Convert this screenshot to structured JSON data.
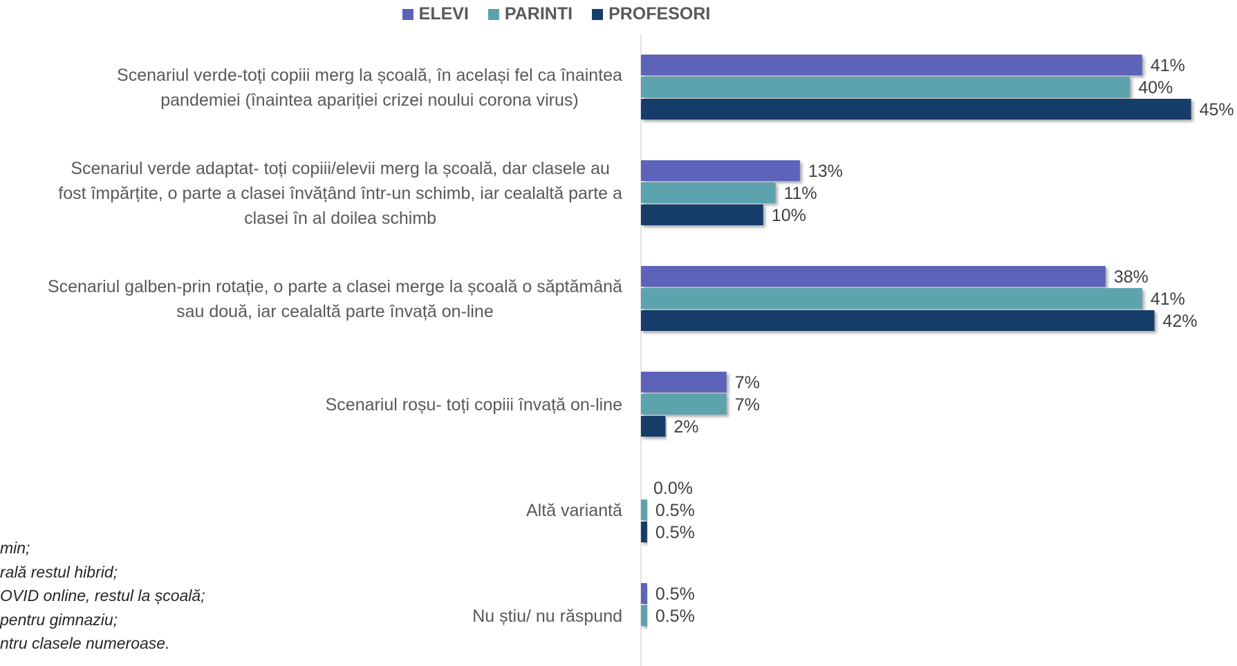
{
  "chart_data": {
    "type": "bar",
    "orientation": "horizontal",
    "legend_position": "top",
    "grid": false,
    "xlim": [
      0,
      50
    ],
    "categories": [
      [
        "Scenariul verde-toți copiii merg la școală, în același fel ca înaintea",
        "pandemiei (înaintea apariției crizei noului corona virus)"
      ],
      [
        "Scenariul verde adaptat- toți copiii/elevii merg la școală, dar clasele au",
        "fost împărțite, o parte a clasei învățând într-un schimb, iar cealaltă parte a",
        "clasei în al doilea schimb"
      ],
      [
        "Scenariul galben-prin rotație, o parte a clasei merge la școală o săptămână",
        "sau două, iar cealaltă parte învață on-line"
      ],
      [
        "Scenariul roșu- toți copiii învață on-line"
      ],
      [
        "Altă variantă"
      ],
      [
        "Nu știu/ nu răspund"
      ]
    ],
    "series": [
      {
        "name": "ELEVI",
        "color": "#5B63B9",
        "values": [
          41,
          13,
          38,
          7,
          0.0,
          0.5
        ],
        "labels": [
          "41%",
          "13%",
          "38%",
          "7%",
          "0.0%",
          "0.5%"
        ]
      },
      {
        "name": "PARINTI",
        "color": "#5BA3AE",
        "values": [
          40,
          11,
          41,
          7,
          0.5,
          0.5
        ],
        "labels": [
          "40%",
          "11%",
          "41%",
          "7%",
          "0.5%",
          "0.5%"
        ]
      },
      {
        "name": "PROFESORI",
        "color": "#173D6B",
        "values": [
          45,
          10,
          42,
          2,
          0.5,
          null
        ],
        "labels": [
          "45%",
          "10%",
          "42%",
          "2%",
          "0.5%",
          null
        ]
      }
    ]
  },
  "notes": [
    "min;",
    "rală restul hibrid;",
    "OVID online, restul la școală;",
    " pentru gimnaziu;",
    "ntru clasele numeroase."
  ]
}
